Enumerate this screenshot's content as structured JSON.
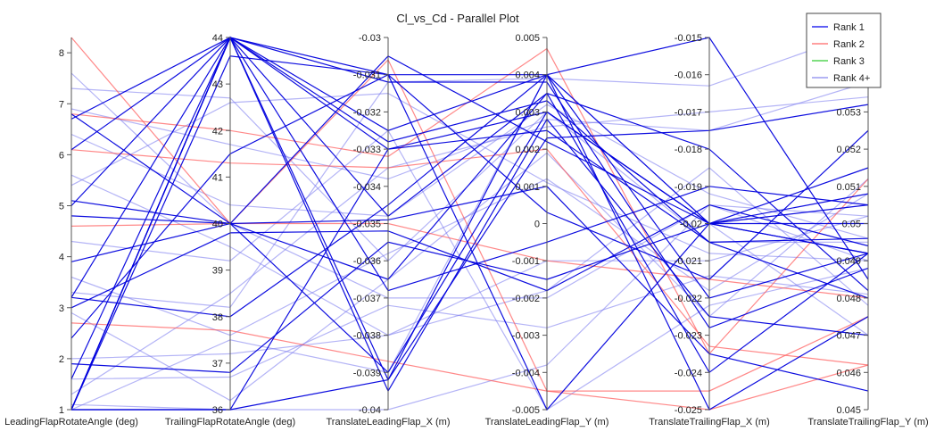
{
  "chart_data": {
    "type": "parallel",
    "title": "Cl_vs_Cd - Parallel Plot",
    "axes": [
      {
        "label": "LeadingFlapRotateAngle (deg)",
        "min": 1,
        "max": 8.3,
        "ticks": [
          "1",
          "2",
          "3",
          "4",
          "5",
          "6",
          "7",
          "8"
        ],
        "tick_values": [
          1,
          2,
          3,
          4,
          5,
          6,
          7,
          8
        ]
      },
      {
        "label": "TrailingFlapRotateAngle (deg)",
        "min": 36,
        "max": 44,
        "ticks": [
          "36",
          "37",
          "38",
          "39",
          "40",
          "41",
          "42",
          "43",
          "44"
        ],
        "tick_values": [
          36,
          37,
          38,
          39,
          40,
          41,
          42,
          43,
          44
        ]
      },
      {
        "label": "TranslateLeadingFlap_X (m)",
        "min": -0.04,
        "max": -0.03,
        "ticks": [
          "-0.04",
          "-0.039",
          "-0.038",
          "-0.037",
          "-0.036",
          "-0.035",
          "-0.034",
          "-0.033",
          "-0.032",
          "-0.031",
          "-0.03"
        ],
        "tick_values": [
          -0.04,
          -0.039,
          -0.038,
          -0.037,
          -0.036,
          -0.035,
          -0.034,
          -0.033,
          -0.032,
          -0.031,
          -0.03
        ]
      },
      {
        "label": "TranslateLeadingFlap_Y (m)",
        "min": -0.005,
        "max": 0.005,
        "ticks": [
          "-0.005",
          "-0.004",
          "-0.003",
          "-0.002",
          "-0.001",
          "0",
          "0.001",
          "0.002",
          "0.003",
          "0.004",
          "0.005"
        ],
        "tick_values": [
          -0.005,
          -0.004,
          -0.003,
          -0.002,
          -0.001,
          0,
          0.001,
          0.002,
          0.003,
          0.004,
          0.005
        ]
      },
      {
        "label": "TranslateTrailingFlap_X (m)",
        "min": -0.025,
        "max": -0.015,
        "ticks": [
          "-0.025",
          "-0.024",
          "-0.023",
          "-0.022",
          "-0.021",
          "-0.02",
          "-0.019",
          "-0.018",
          "-0.017",
          "-0.016",
          "-0.015"
        ],
        "tick_values": [
          -0.025,
          -0.024,
          -0.023,
          -0.022,
          -0.021,
          -0.02,
          -0.019,
          -0.018,
          -0.017,
          -0.016,
          -0.015
        ]
      },
      {
        "label": "TranslateTrailingFlap_Y (m)",
        "min": 0.045,
        "max": 0.055,
        "ticks": [
          "0.045",
          "0.046",
          "0.047",
          "0.048",
          "0.049",
          "0.05",
          "0.051",
          "0.052",
          "0.053"
        ],
        "tick_values": [
          0.045,
          0.046,
          0.047,
          0.048,
          0.049,
          0.05,
          0.051,
          0.052,
          0.053
        ]
      }
    ],
    "legend": {
      "placement": "top-right",
      "entries": [
        {
          "name": "Rank 1",
          "color": "#0000ee"
        },
        {
          "name": "Rank 2",
          "color": "#ff6666"
        },
        {
          "name": "Rank 3",
          "color": "#33cc33"
        },
        {
          "name": "Rank 4+",
          "color": "#8888ee"
        }
      ]
    },
    "series": [
      {
        "name": "Rank 1",
        "color": "#0000dd",
        "opacity": 0.95,
        "lines": [
          [
            1.0,
            44.0,
            -0.0392,
            0.004,
            -0.025,
            0.0475
          ],
          [
            1.0,
            44.0,
            -0.033,
            0.0025,
            -0.0205,
            0.048
          ],
          [
            1.0,
            43.6,
            -0.031,
            0.004,
            -0.022,
            0.0492
          ],
          [
            1.0,
            36.0,
            -0.033,
            0.003,
            -0.02,
            0.05
          ],
          [
            1.9,
            36.8,
            -0.0355,
            -0.0015,
            -0.02,
            0.0505
          ],
          [
            3.2,
            44.0,
            -0.0325,
            0.004,
            -0.02,
            0.0492
          ],
          [
            3.2,
            38.0,
            -0.0345,
            0.004,
            -0.015,
            0.0485
          ],
          [
            3.9,
            40.0,
            -0.0349,
            0.001,
            -0.0235,
            0.0455
          ],
          [
            5.1,
            40.0,
            -0.0365,
            0.0035,
            -0.024,
            0.0492
          ],
          [
            6.1,
            44.0,
            -0.031,
            -0.005,
            -0.02,
            0.0515
          ],
          [
            6.8,
            40.0,
            -0.039,
            0.003,
            -0.02,
            0.0492
          ],
          [
            6.7,
            44.0,
            -0.0328,
            0.0033,
            -0.0205,
            0.0496
          ],
          [
            5.0,
            44.0,
            -0.0348,
            0.0035,
            -0.018,
            0.0482
          ],
          [
            1.0,
            44.0,
            -0.0368,
            -0.0005,
            -0.019,
            0.0505
          ],
          [
            1.6,
            44.0,
            -0.0395,
            0.0028,
            -0.0225,
            0.047
          ],
          [
            2.4,
            41.5,
            -0.031,
            0.0003,
            -0.0215,
            0.0525
          ],
          [
            1.0,
            36.0,
            -0.0392,
            0.0023,
            -0.0175,
            0.0532
          ],
          [
            4.8,
            40.0,
            -0.0305,
            0.0022,
            -0.02,
            0.0508
          ],
          [
            3.0,
            39.8,
            -0.0352,
            -0.0018,
            -0.0195,
            0.0494
          ],
          [
            1.0,
            44.0,
            -0.0312,
            0.0038,
            -0.0228,
            0.0488
          ]
        ]
      },
      {
        "name": "Rank 2",
        "color": "#ff5555",
        "opacity": 0.7,
        "lines": [
          [
            8.3,
            40.0,
            -0.0306,
            -0.0045,
            -0.0245,
            0.0475
          ],
          [
            6.1,
            41.3,
            -0.0335,
            0.002,
            -0.0233,
            0.0462
          ],
          [
            4.6,
            40.0,
            -0.035,
            -0.001,
            -0.0215,
            0.048
          ],
          [
            2.7,
            37.7,
            -0.0387,
            -0.0045,
            -0.025,
            0.0462
          ],
          [
            6.8,
            42.0,
            -0.0332,
            0.0047,
            -0.0235,
            0.0512
          ]
        ]
      },
      {
        "name": "Rank 4+",
        "color": "#7777ee",
        "opacity": 0.55,
        "lines": [
          [
            7.6,
            40.0,
            -0.037,
            -0.002,
            -0.0195,
            0.049
          ],
          [
            7.3,
            42.7,
            -0.036,
            0.003,
            -0.0205,
            0.0495
          ],
          [
            5.6,
            39.5,
            -0.038,
            -0.001,
            -0.021,
            0.0502
          ],
          [
            3.6,
            37.6,
            -0.0358,
            0.0012,
            -0.0218,
            0.0508
          ],
          [
            2.9,
            36.2,
            -0.0365,
            0.0019,
            -0.0225,
            0.0512
          ],
          [
            1.1,
            36.0,
            -0.04,
            -0.0038,
            -0.0195,
            0.0502
          ],
          [
            1.0,
            37.5,
            -0.039,
            0.004,
            -0.02,
            0.047
          ],
          [
            1.3,
            38.5,
            -0.0335,
            0.0026,
            -0.017,
            0.0534
          ],
          [
            4.3,
            39.2,
            -0.0325,
            -0.005,
            -0.0222,
            0.0488
          ],
          [
            6.4,
            40.4,
            -0.0348,
            0.0032,
            -0.0192,
            0.0496
          ],
          [
            5.4,
            42.6,
            -0.0315,
            0.0011,
            -0.0208,
            0.049
          ],
          [
            2.0,
            37.2,
            -0.038,
            -0.0018,
            -0.0185,
            0.0478
          ],
          [
            3.3,
            38.2,
            -0.0312,
            0.0039,
            -0.0163,
            0.0552
          ],
          [
            6.9,
            41.7,
            -0.0338,
            0.0028,
            -0.0175,
            0.0538
          ],
          [
            1.6,
            36.7,
            -0.0372,
            -0.0028,
            -0.0214,
            0.0481
          ]
        ]
      }
    ]
  }
}
